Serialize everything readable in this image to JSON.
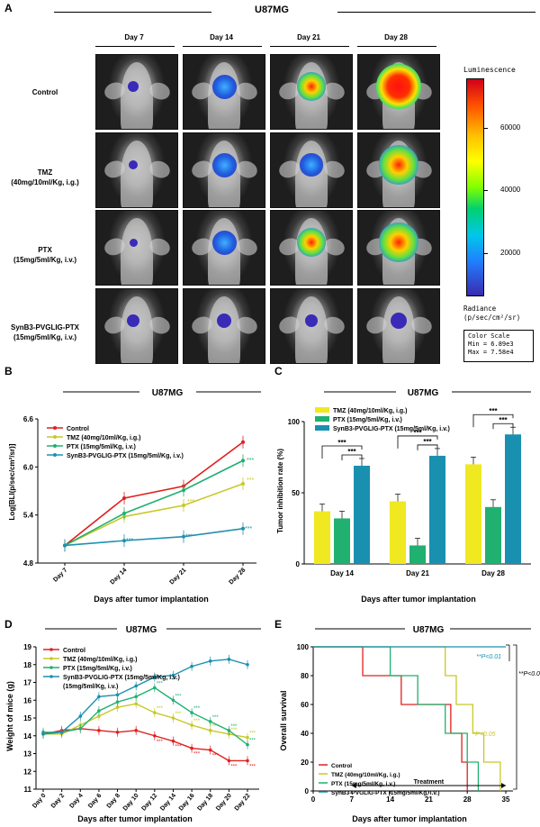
{
  "panel_a": {
    "label": "A",
    "title": "U87MG",
    "days": [
      "Day 7",
      "Day 14",
      "Day 21",
      "Day 28"
    ],
    "rows": [
      {
        "line1": "Control",
        "line2": ""
      },
      {
        "line1": "TMZ",
        "line2": "(40mg/10ml/Kg, i.g.)"
      },
      {
        "line1": "PTX",
        "line2": "(15mg/5ml/Kg, i.v.)"
      },
      {
        "line1": "SynB3-PVGLIG-PTX",
        "line2": "(15mg/5ml/Kg, i.v.)"
      }
    ],
    "colorbar": {
      "title": "Luminescence",
      "ticks": [
        "60000",
        "40000",
        "20000"
      ],
      "radiance_line1": "Radiance",
      "radiance_line2": "(p/sec/cm²/sr)",
      "scale_title": "Color Scale",
      "min_text": "Min = 6.89e3",
      "max_text": "Max = 7.58e4"
    }
  },
  "panel_b": {
    "label": "B",
    "title": "U87MG",
    "chart_data": {
      "type": "line",
      "categories": [
        "Day 7",
        "Day 14",
        "Day 21",
        "Day 28"
      ],
      "ylabel": "Log[BLI(p/sec/cm²/sr)]",
      "xlabel": "Days after tumor implantation",
      "ylim": [
        4.8,
        6.6
      ],
      "yticks": [
        "4.8",
        "5.4",
        "6.0",
        "6.6"
      ],
      "series": [
        {
          "name": "Control",
          "color": "#e02020",
          "values": [
            5.02,
            5.61,
            5.76,
            6.31
          ]
        },
        {
          "name": "TMZ (40mg/10ml/Kg, i.g.)",
          "color": "#c8c828",
          "values": [
            5.02,
            5.38,
            5.52,
            5.79
          ]
        },
        {
          "name": "PTX (15mg/5ml/Kg, i.v.)",
          "color": "#20b070",
          "values": [
            5.02,
            5.42,
            5.71,
            6.08
          ]
        },
        {
          "name": "SynB3-PVGLIG-PTX (15mg/5ml/Kg, i.v.)",
          "color": "#2090b0",
          "values": [
            5.02,
            5.08,
            5.13,
            5.23
          ]
        }
      ],
      "annotations": [
        "***",
        "***",
        "***",
        "***",
        "***",
        "***"
      ]
    }
  },
  "panel_c": {
    "label": "C",
    "title": "U87MG",
    "chart_data": {
      "type": "bar",
      "categories": [
        "Day 14",
        "Day 21",
        "Day 28"
      ],
      "ylabel": "Tumor inhibition rate (%)",
      "xlabel": "Days after tumor implantation",
      "ylim": [
        0,
        100
      ],
      "yticks": [
        "0",
        "50",
        "100"
      ],
      "series": [
        {
          "name": "TMZ (40mg/10ml/Kg, i.g.)",
          "color": "#f0e820",
          "values": [
            37,
            44,
            70
          ]
        },
        {
          "name": "PTX (15mg/5ml/Kg, i.v.)",
          "color": "#20b070",
          "values": [
            32,
            13,
            40
          ]
        },
        {
          "name": "SynB3-PVGLIG-PTX (15mg/5ml/Kg, i.v.)",
          "color": "#1a90b0",
          "values": [
            69,
            76,
            91
          ]
        }
      ],
      "significance": "***"
    }
  },
  "panel_d": {
    "label": "D",
    "title": "U87MG",
    "chart_data": {
      "type": "line",
      "categories": [
        "Day 0",
        "Day 2",
        "Day 4",
        "Day 6",
        "Day 8",
        "Day 10",
        "Day 12",
        "Day 14",
        "Day 16",
        "Day 18",
        "Day 20",
        "Day 22"
      ],
      "ylabel": "Weight of mice (g)",
      "xlabel": "Days after tumor implantation",
      "ylim": [
        11,
        19
      ],
      "yticks": [
        "11",
        "12",
        "13",
        "14",
        "15",
        "16",
        "17",
        "18",
        "19"
      ],
      "series": [
        {
          "name": "Control",
          "color": "#e02020",
          "values": [
            14.1,
            14.3,
            14.4,
            14.3,
            14.2,
            14.3,
            14.0,
            13.7,
            13.3,
            13.2,
            12.6,
            12.6
          ]
        },
        {
          "name": "TMZ (40mg/10ml/Kg, i.g.)",
          "color": "#c8c828",
          "values": [
            14.1,
            14.1,
            14.6,
            15.1,
            15.6,
            15.8,
            15.3,
            15.0,
            14.6,
            14.3,
            14.1,
            13.9
          ]
        },
        {
          "name": "PTX (15mg/5ml/Kg, i.v.)",
          "color": "#20b070",
          "values": [
            14.2,
            14.2,
            14.4,
            15.4,
            15.9,
            16.2,
            16.7,
            16.0,
            15.3,
            14.8,
            14.3,
            13.5
          ]
        },
        {
          "name": "SynB3-PVGLIG-PTX (15mg/5ml/Kg, i.v.)",
          "color": "#1a90b0",
          "values": [
            14.1,
            14.2,
            15.1,
            16.2,
            16.3,
            16.8,
            17.3,
            17.4,
            17.9,
            18.2,
            18.3,
            18.0
          ]
        }
      ],
      "legend_extra": "(15mg/5ml/Kg, i.v.)",
      "significance": "***"
    }
  },
  "panel_e": {
    "label": "E",
    "title": "U87MG",
    "chart_data": {
      "type": "line",
      "xlabel": "Days after tumor implantation",
      "ylabel": "Overall survival",
      "xticks": [
        "0",
        "7",
        "14",
        "21",
        "28",
        "35"
      ],
      "yticks": [
        "0",
        "20",
        "40",
        "60",
        "80",
        "100"
      ],
      "xlim": [
        0,
        35
      ],
      "ylim": [
        0,
        100
      ],
      "series": [
        {
          "name": "Control",
          "color": "#e02020",
          "steps": [
            [
              0,
              100
            ],
            [
              9,
              100
            ],
            [
              9,
              80
            ],
            [
              16,
              80
            ],
            [
              16,
              60
            ],
            [
              25,
              60
            ],
            [
              25,
              40
            ],
            [
              27,
              40
            ],
            [
              27,
              20
            ],
            [
              28,
              20
            ],
            [
              28,
              0
            ]
          ]
        },
        {
          "name": "TMZ (40mg/10ml/Kg, i.g.)",
          "color": "#c8c828",
          "steps": [
            [
              0,
              100
            ],
            [
              24,
              100
            ],
            [
              24,
              80
            ],
            [
              26,
              80
            ],
            [
              26,
              60
            ],
            [
              29,
              60
            ],
            [
              29,
              40
            ],
            [
              31,
              40
            ],
            [
              31,
              20
            ],
            [
              34,
              20
            ],
            [
              34,
              0
            ]
          ]
        },
        {
          "name": "PTX (15mg/5ml/Kg, i.v.)",
          "color": "#20b070",
          "steps": [
            [
              0,
              100
            ],
            [
              14,
              100
            ],
            [
              14,
              80
            ],
            [
              19,
              80
            ],
            [
              19,
              60
            ],
            [
              24,
              60
            ],
            [
              24,
              40
            ],
            [
              28,
              40
            ],
            [
              28,
              20
            ],
            [
              30,
              20
            ],
            [
              30,
              0
            ]
          ]
        },
        {
          "name": "SynB3-PVGLIG-PTX (15mg/5ml/Kg, i.v.)",
          "color": "#1a90b0",
          "steps": [
            [
              0,
              100
            ],
            [
              35,
              100
            ]
          ]
        }
      ],
      "annotations": {
        "p1": "**P<0.01",
        "p2": "**P<0.01",
        "p3": "*P<0.05",
        "treatment": "Treatment"
      }
    }
  }
}
